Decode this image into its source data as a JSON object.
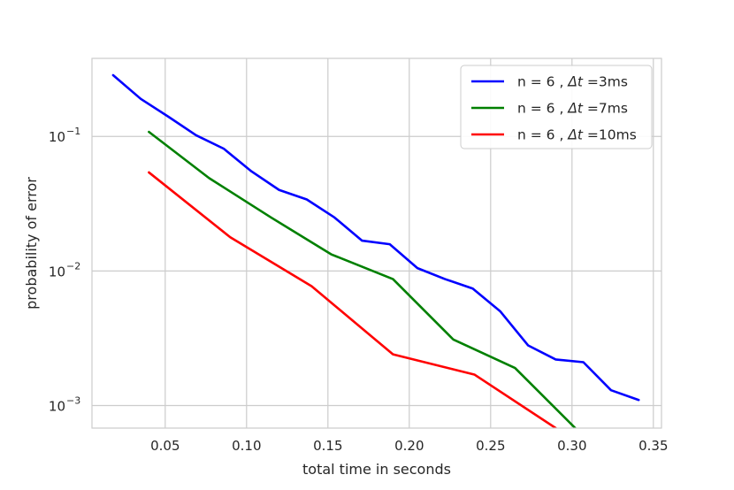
{
  "chart_data": {
    "type": "line",
    "title": "",
    "xlabel": "total time in seconds",
    "ylabel": "probability of error",
    "xlim": [
      0.005,
      0.355
    ],
    "ylim": [
      0.00068,
      0.38
    ],
    "yscale": "log",
    "grid": true,
    "legend_position": "top-right",
    "x_ticks": [
      {
        "value": 0.05,
        "label": "0.05"
      },
      {
        "value": 0.1,
        "label": "0.10"
      },
      {
        "value": 0.15,
        "label": "0.15"
      },
      {
        "value": 0.2,
        "label": "0.20"
      },
      {
        "value": 0.25,
        "label": "0.25"
      },
      {
        "value": 0.3,
        "label": "0.30"
      },
      {
        "value": 0.35,
        "label": "0.35"
      }
    ],
    "y_ticks": [
      {
        "value": 0.1,
        "base": "10",
        "exp": "−1"
      },
      {
        "value": 0.01,
        "base": "10",
        "exp": "−2"
      },
      {
        "value": 0.001,
        "base": "10",
        "exp": "−3"
      }
    ],
    "series": [
      {
        "name_prefix": "n = 6 , ",
        "name_var": "Δt",
        "name_suffix": " =3ms",
        "color": "#0000ff",
        "x": [
          0.018,
          0.035,
          0.052,
          0.069,
          0.086,
          0.103,
          0.12,
          0.137,
          0.154,
          0.171,
          0.188,
          0.205,
          0.222,
          0.239,
          0.256,
          0.273,
          0.29,
          0.307,
          0.324,
          0.341
        ],
        "y": [
          0.285,
          0.19,
          0.14,
          0.102,
          0.081,
          0.055,
          0.04,
          0.034,
          0.025,
          0.0168,
          0.0158,
          0.0105,
          0.0087,
          0.0074,
          0.005,
          0.0028,
          0.0022,
          0.0021,
          0.0013,
          0.0011
        ]
      },
      {
        "name_prefix": "n = 6 , ",
        "name_var": "Δt",
        "name_suffix": " =7ms",
        "color": "#008000",
        "x": [
          0.04,
          0.077,
          0.115,
          0.152,
          0.19,
          0.227,
          0.265,
          0.302
        ],
        "y": [
          0.108,
          0.049,
          0.025,
          0.0133,
          0.0087,
          0.0031,
          0.0019,
          0.00068
        ]
      },
      {
        "name_prefix": "n = 6 , ",
        "name_var": "Δt",
        "name_suffix": " =10ms",
        "color": "#ff0000",
        "x": [
          0.04,
          0.09,
          0.14,
          0.19,
          0.24,
          0.29
        ],
        "y": [
          0.054,
          0.0178,
          0.0077,
          0.0024,
          0.0017,
          0.00068
        ]
      }
    ]
  }
}
